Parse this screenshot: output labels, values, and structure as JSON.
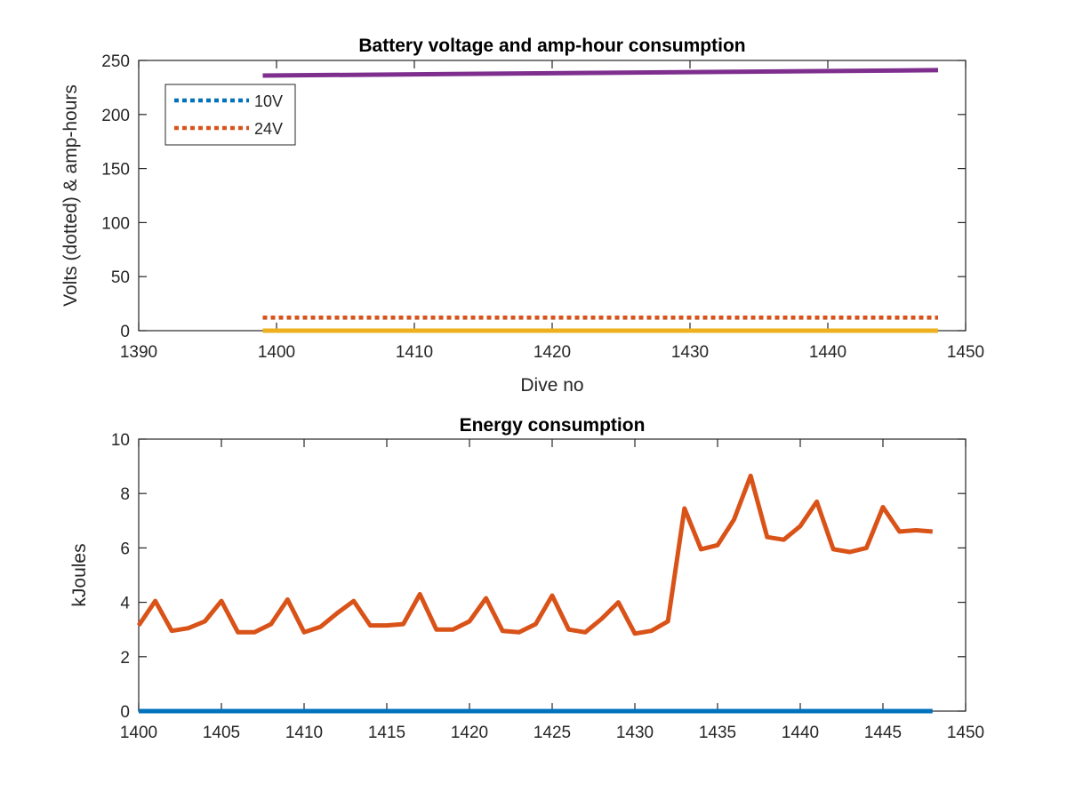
{
  "colors": {
    "blue": "#0072BD",
    "orange": "#D95319",
    "yellow": "#EDB120",
    "purple": "#7E2F8E",
    "axis": "#262626"
  },
  "chart_data": [
    {
      "type": "line",
      "title": "Battery voltage and amp-hour consumption",
      "xlabel": "Dive no",
      "ylabel": "Volts (dotted) & amp-hours",
      "xlim": [
        1390,
        1450
      ],
      "ylim": [
        0,
        250
      ],
      "xticks": [
        "1390",
        "1400",
        "1410",
        "1420",
        "1430",
        "1440",
        "1450"
      ],
      "yticks": [
        "0",
        "50",
        "100",
        "150",
        "200",
        "250"
      ],
      "grid": false,
      "legend_position": "top-left",
      "series": [
        {
          "name": "10V",
          "style": "dotted",
          "color": "blue",
          "x": [
            1399,
            1448
          ],
          "values": [
            12,
            12
          ]
        },
        {
          "name": "24V",
          "style": "dotted",
          "color": "orange",
          "x": [
            1399,
            1448
          ],
          "values": [
            12.2,
            12.2
          ]
        },
        {
          "style": "solid",
          "color": "yellow",
          "x": [
            1399,
            1448
          ],
          "values": [
            0,
            0
          ]
        },
        {
          "style": "solid",
          "color": "purple",
          "x": [
            1399,
            1448
          ],
          "values": [
            236,
            241
          ]
        }
      ]
    },
    {
      "type": "line",
      "title": "Energy consumption",
      "xlabel": "",
      "ylabel": "kJoules",
      "xlim": [
        1400,
        1450
      ],
      "ylim": [
        0,
        10
      ],
      "xticks": [
        "1400",
        "1405",
        "1410",
        "1415",
        "1420",
        "1425",
        "1430",
        "1435",
        "1440",
        "1445",
        "1450"
      ],
      "yticks": [
        "0",
        "2",
        "4",
        "6",
        "8",
        "10"
      ],
      "grid": false,
      "series": [
        {
          "style": "solid",
          "color": "blue",
          "x": [
            1400,
            1448
          ],
          "values": [
            0,
            0
          ]
        },
        {
          "style": "solid",
          "color": "orange",
          "x": [
            1400,
            1401,
            1402,
            1403,
            1404,
            1405,
            1406,
            1407,
            1408,
            1409,
            1410,
            1411,
            1412,
            1413,
            1414,
            1415,
            1416,
            1417,
            1418,
            1419,
            1420,
            1421,
            1422,
            1423,
            1424,
            1425,
            1426,
            1427,
            1428,
            1429,
            1430,
            1431,
            1432,
            1433,
            1434,
            1435,
            1436,
            1437,
            1438,
            1439,
            1440,
            1441,
            1442,
            1443,
            1444,
            1445,
            1446,
            1447,
            1448
          ],
          "values": [
            3.15,
            4.05,
            2.95,
            3.05,
            3.3,
            4.05,
            2.9,
            2.9,
            3.2,
            4.1,
            2.9,
            3.1,
            3.6,
            4.05,
            3.15,
            3.15,
            3.2,
            4.3,
            3.0,
            3.0,
            3.3,
            4.15,
            2.95,
            2.9,
            3.2,
            4.25,
            3.0,
            2.9,
            3.4,
            4.0,
            2.85,
            2.95,
            3.3,
            7.45,
            5.95,
            6.1,
            7.05,
            8.65,
            6.4,
            6.3,
            6.8,
            7.7,
            5.95,
            5.85,
            6.0,
            7.5,
            6.6,
            6.65,
            6.6
          ]
        }
      ]
    }
  ]
}
